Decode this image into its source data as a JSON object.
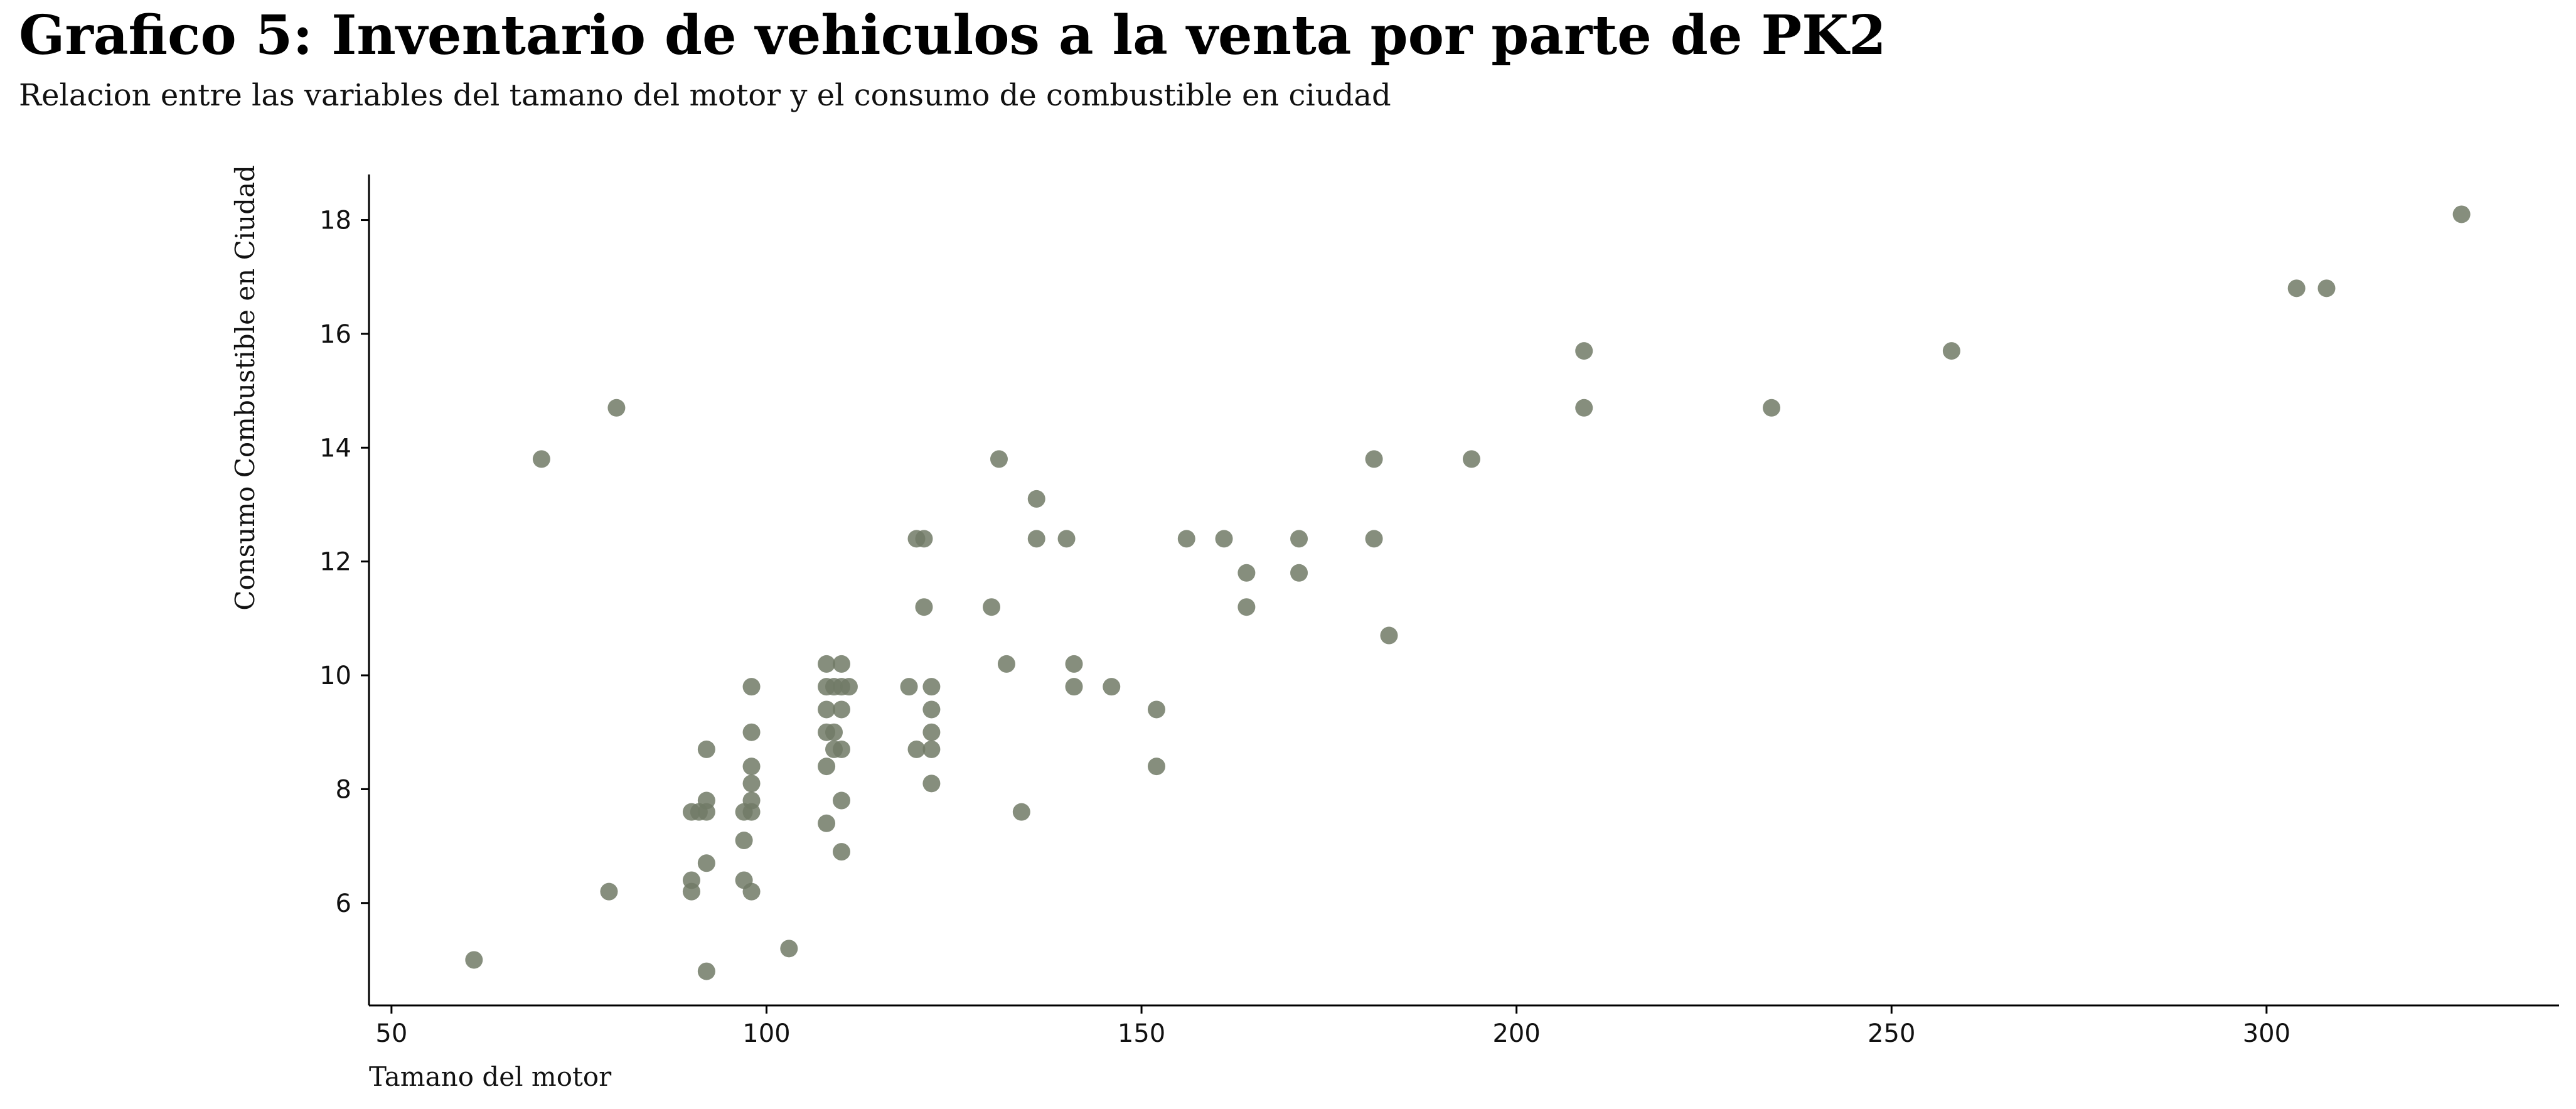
{
  "header": {
    "title": "Grafico 5: Inventario de vehiculos a la venta por parte de PK2",
    "subtitle": "Relacion entre las variables del tamano del motor y el consumo de combustible en ciudad"
  },
  "colors": {
    "marker": "#717a66",
    "axis": "#000000"
  },
  "chart_data": {
    "type": "scatter",
    "xlabel": "Tamano del motor",
    "ylabel": "Consumo Combustible en Ciudad",
    "xlim": [
      47,
      339
    ],
    "ylim": [
      4.2,
      18.8
    ],
    "xticks": [
      50,
      100,
      150,
      200,
      250,
      300
    ],
    "yticks": [
      6,
      8,
      10,
      12,
      14,
      16,
      18
    ],
    "grid": false,
    "points": [
      {
        "x": 61,
        "y": 5.0
      },
      {
        "x": 70,
        "y": 13.8
      },
      {
        "x": 79,
        "y": 6.2
      },
      {
        "x": 80,
        "y": 14.7
      },
      {
        "x": 90,
        "y": 7.6
      },
      {
        "x": 90,
        "y": 6.4
      },
      {
        "x": 90,
        "y": 6.2
      },
      {
        "x": 91,
        "y": 7.6
      },
      {
        "x": 92,
        "y": 7.6
      },
      {
        "x": 92,
        "y": 8.7
      },
      {
        "x": 92,
        "y": 7.8
      },
      {
        "x": 92,
        "y": 6.7
      },
      {
        "x": 92,
        "y": 4.8
      },
      {
        "x": 97,
        "y": 7.6
      },
      {
        "x": 97,
        "y": 7.1
      },
      {
        "x": 97,
        "y": 6.4
      },
      {
        "x": 98,
        "y": 9.8
      },
      {
        "x": 98,
        "y": 9.0
      },
      {
        "x": 98,
        "y": 8.4
      },
      {
        "x": 98,
        "y": 8.1
      },
      {
        "x": 98,
        "y": 7.8
      },
      {
        "x": 98,
        "y": 7.6
      },
      {
        "x": 98,
        "y": 6.2
      },
      {
        "x": 103,
        "y": 5.2
      },
      {
        "x": 108,
        "y": 10.2
      },
      {
        "x": 108,
        "y": 9.8
      },
      {
        "x": 108,
        "y": 9.4
      },
      {
        "x": 108,
        "y": 9.0
      },
      {
        "x": 108,
        "y": 8.4
      },
      {
        "x": 108,
        "y": 7.4
      },
      {
        "x": 109,
        "y": 9.8
      },
      {
        "x": 109,
        "y": 9.0
      },
      {
        "x": 109,
        "y": 8.7
      },
      {
        "x": 110,
        "y": 10.2
      },
      {
        "x": 110,
        "y": 9.8
      },
      {
        "x": 110,
        "y": 9.4
      },
      {
        "x": 110,
        "y": 8.7
      },
      {
        "x": 110,
        "y": 7.8
      },
      {
        "x": 110,
        "y": 6.9
      },
      {
        "x": 111,
        "y": 9.8
      },
      {
        "x": 119,
        "y": 9.8
      },
      {
        "x": 120,
        "y": 12.4
      },
      {
        "x": 120,
        "y": 8.7
      },
      {
        "x": 121,
        "y": 12.4
      },
      {
        "x": 121,
        "y": 11.2
      },
      {
        "x": 122,
        "y": 9.8
      },
      {
        "x": 122,
        "y": 9.4
      },
      {
        "x": 122,
        "y": 9.0
      },
      {
        "x": 122,
        "y": 8.7
      },
      {
        "x": 122,
        "y": 8.1
      },
      {
        "x": 130,
        "y": 11.2
      },
      {
        "x": 131,
        "y": 13.8
      },
      {
        "x": 132,
        "y": 10.2
      },
      {
        "x": 134,
        "y": 7.6
      },
      {
        "x": 136,
        "y": 13.1
      },
      {
        "x": 136,
        "y": 12.4
      },
      {
        "x": 140,
        "y": 12.4
      },
      {
        "x": 141,
        "y": 10.2
      },
      {
        "x": 141,
        "y": 9.8
      },
      {
        "x": 146,
        "y": 9.8
      },
      {
        "x": 152,
        "y": 9.4
      },
      {
        "x": 152,
        "y": 8.4
      },
      {
        "x": 156,
        "y": 12.4
      },
      {
        "x": 161,
        "y": 12.4
      },
      {
        "x": 164,
        "y": 11.8
      },
      {
        "x": 164,
        "y": 11.2
      },
      {
        "x": 171,
        "y": 12.4
      },
      {
        "x": 171,
        "y": 11.8
      },
      {
        "x": 181,
        "y": 13.8
      },
      {
        "x": 181,
        "y": 12.4
      },
      {
        "x": 183,
        "y": 10.7
      },
      {
        "x": 194,
        "y": 13.8
      },
      {
        "x": 209,
        "y": 15.7
      },
      {
        "x": 209,
        "y": 14.7
      },
      {
        "x": 234,
        "y": 14.7
      },
      {
        "x": 258,
        "y": 15.7
      },
      {
        "x": 304,
        "y": 16.8
      },
      {
        "x": 308,
        "y": 16.8
      },
      {
        "x": 326,
        "y": 18.1
      }
    ]
  }
}
